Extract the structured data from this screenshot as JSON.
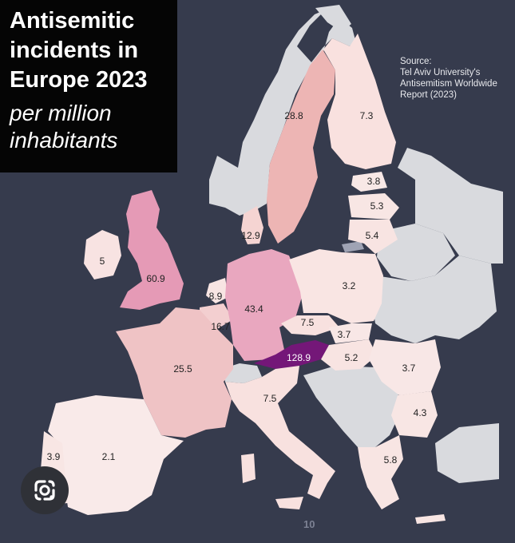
{
  "title": "Antisemitic incidents in Europe 2023",
  "subtitle": "per million inhabitants",
  "source": {
    "heading": "Source:",
    "line1": "Tel Aviv University's",
    "line2": "Antisemitism Worldwide",
    "line3": "Report (2023)"
  },
  "page_indicator": "10",
  "icons": {
    "lens": "google-lens-icon"
  },
  "colors": {
    "sea": "#363b4d",
    "no_data": "#d9dade",
    "scale_low": "#f8e7e6",
    "scale_high": "#e48fb1",
    "scale_max": "#741778"
  },
  "map_values": [
    {
      "id": "sweden",
      "value": "28.8"
    },
    {
      "id": "finland",
      "value": "7.3"
    },
    {
      "id": "estonia",
      "value": "3.8"
    },
    {
      "id": "latvia",
      "value": "5.3"
    },
    {
      "id": "lithuania",
      "value": "5.4"
    },
    {
      "id": "denmark",
      "value": "12.9"
    },
    {
      "id": "ireland",
      "value": "5"
    },
    {
      "id": "uk",
      "value": "60.9"
    },
    {
      "id": "netherlands",
      "value": "8.9"
    },
    {
      "id": "belgium",
      "value": "16.7"
    },
    {
      "id": "germany",
      "value": "43.4"
    },
    {
      "id": "poland",
      "value": "3.2"
    },
    {
      "id": "czechia",
      "value": "7.5"
    },
    {
      "id": "slovakia",
      "value": "3.7"
    },
    {
      "id": "austria",
      "value": "128.9"
    },
    {
      "id": "hungary",
      "value": "5.2"
    },
    {
      "id": "romania",
      "value": "3.7"
    },
    {
      "id": "france",
      "value": "25.5"
    },
    {
      "id": "italy",
      "value": "7.5"
    },
    {
      "id": "bulgaria",
      "value": "4.3"
    },
    {
      "id": "greece",
      "value": "5.8"
    },
    {
      "id": "spain",
      "value": "2.1"
    },
    {
      "id": "portugal",
      "value": "3.9"
    }
  ]
}
